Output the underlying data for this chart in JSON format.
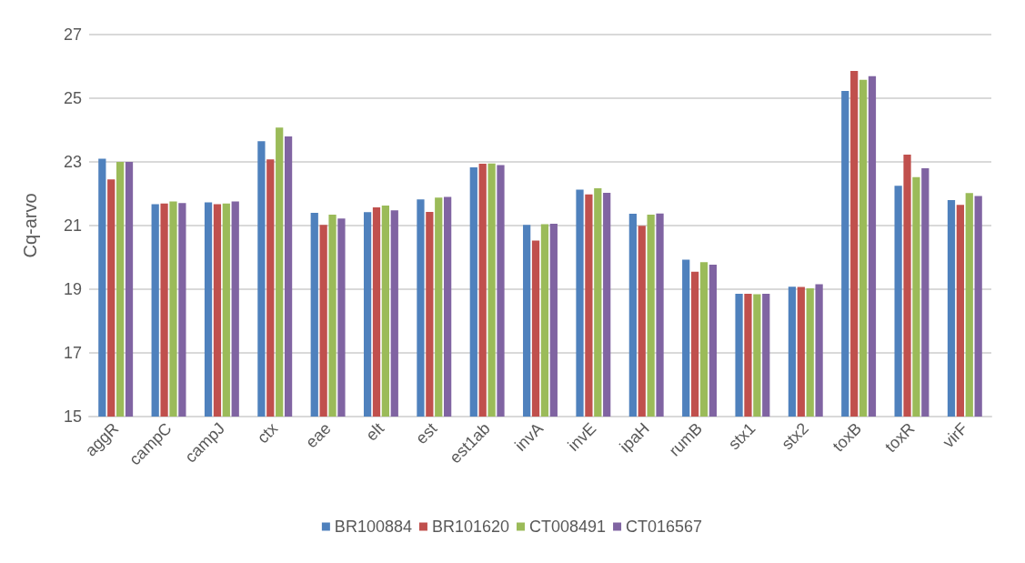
{
  "chart_data": {
    "type": "bar",
    "ylabel": "Cq-arvo",
    "categories": [
      "aggR",
      "campC",
      "campJ",
      "ctx",
      "eae",
      "elt",
      "est",
      "est1ab",
      "invA",
      "invE",
      "ipaH",
      "rumB",
      "stx1",
      "stx2",
      "toxB",
      "toxR",
      "virF"
    ],
    "series": [
      {
        "name": "BR100884",
        "color": "#4f81bd",
        "values": [
          23.1,
          21.67,
          21.73,
          23.65,
          21.4,
          21.42,
          21.82,
          22.83,
          21.02,
          22.13,
          21.37,
          19.93,
          18.86,
          19.08,
          25.23,
          22.25,
          21.8
        ]
      },
      {
        "name": "BR101620",
        "color": "#c0504d",
        "values": [
          22.45,
          21.69,
          21.67,
          23.08,
          21.02,
          21.57,
          21.43,
          22.94,
          20.53,
          21.98,
          20.99,
          19.55,
          18.86,
          19.07,
          25.86,
          23.23,
          21.65
        ]
      },
      {
        "name": "CT008491",
        "color": "#9bbb59",
        "values": [
          23.0,
          21.76,
          21.69,
          24.08,
          21.34,
          21.63,
          21.88,
          22.95,
          21.04,
          22.17,
          21.34,
          19.85,
          18.84,
          19.03,
          25.58,
          22.52,
          22.02
        ]
      },
      {
        "name": "CT016567",
        "color": "#8064a2",
        "values": [
          23.0,
          21.71,
          21.76,
          23.8,
          21.22,
          21.48,
          21.9,
          22.9,
          21.06,
          22.03,
          21.38,
          19.77,
          18.86,
          19.16,
          25.69,
          22.8,
          21.93
        ]
      }
    ],
    "ylim": [
      15,
      27
    ],
    "yticks": [
      15,
      17,
      19,
      21,
      23,
      25,
      27
    ],
    "grid": "y",
    "legend": "bottom"
  }
}
